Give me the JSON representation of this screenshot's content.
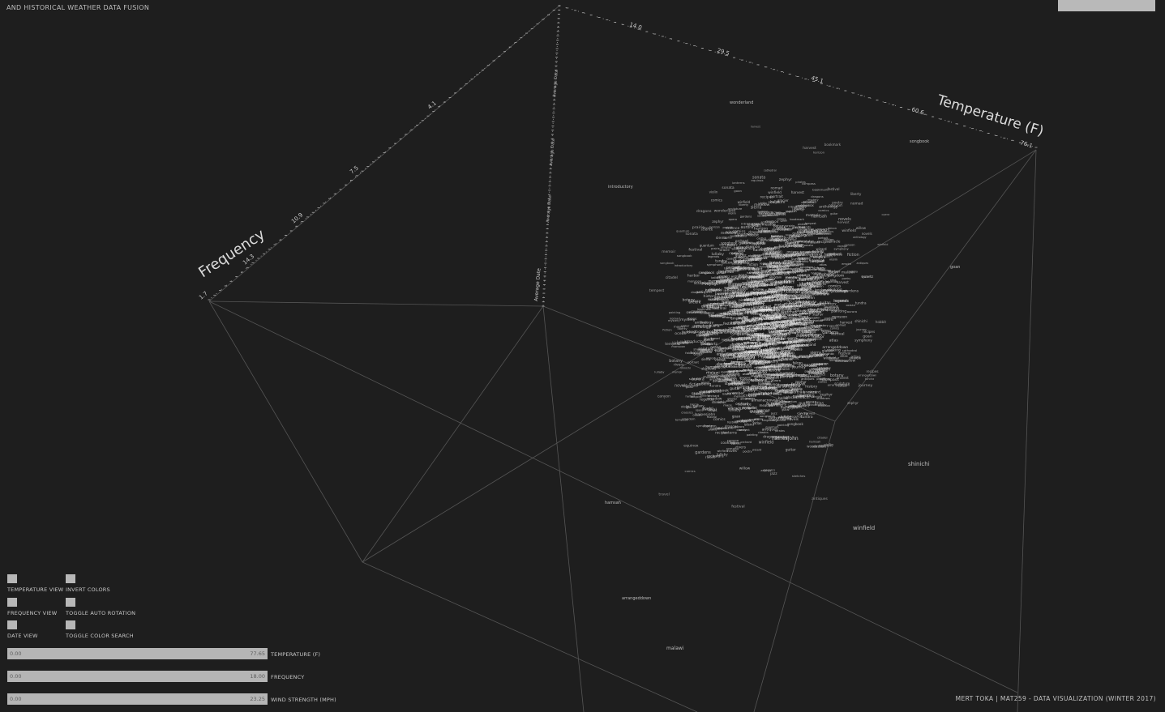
{
  "header": {
    "title": "AND HISTORICAL WEATHER DATA FUSION"
  },
  "footer": {
    "credits": "MERT TOKA  |  MAT259  -  DATA VISUALIZATION (WINTER 2017)"
  },
  "axes": {
    "temperature": {
      "label": "Temperature (F)",
      "ticks": [
        "14.0",
        "29.5",
        "45.1",
        "60.6",
        "76.1"
      ]
    },
    "frequency": {
      "label": "Frequency",
      "ticks": [
        "1.7",
        "14.3",
        "10.9",
        "7.5",
        "4.1"
      ]
    },
    "date": {
      "label": "Average Date",
      "ticks": [
        "Average Date",
        "Average Date",
        "Average Date",
        "Average Date"
      ]
    }
  },
  "words": [
    {
      "text": "shinichi",
      "size": 7
    },
    {
      "text": "winfield",
      "size": 7
    },
    {
      "text": "malawi",
      "size": 6
    },
    {
      "text": "hainesjohn",
      "size": 6
    },
    {
      "text": "hamsah",
      "size": 5
    },
    {
      "text": "arrangeddown",
      "size": 5
    },
    {
      "text": "goan",
      "size": 5
    },
    {
      "text": "introductory",
      "size": 5
    },
    {
      "text": "wonderland",
      "size": 5
    },
    {
      "text": "songbook",
      "size": 5
    },
    {
      "text": "cathedral",
      "size": 5
    },
    {
      "text": "galaxy",
      "size": 5
    },
    {
      "text": "bookmark",
      "size": 5
    },
    {
      "text": "ancient",
      "size": 5
    },
    {
      "text": "liberty",
      "size": 5
    },
    {
      "text": "hobbit",
      "size": 5
    },
    {
      "text": "guitar",
      "size": 5
    },
    {
      "text": "voyage",
      "size": 5
    },
    {
      "text": "antiques",
      "size": 5
    },
    {
      "text": "poetry",
      "size": 5
    },
    {
      "text": "harvest",
      "size": 5
    },
    {
      "text": "kingdom",
      "size": 5
    },
    {
      "text": "recipes",
      "size": 5
    },
    {
      "text": "ocean",
      "size": 5
    },
    {
      "text": "gardens",
      "size": 5
    },
    {
      "text": "wizard",
      "size": 5
    },
    {
      "text": "memoir",
      "size": 5
    },
    {
      "text": "island",
      "size": 5
    },
    {
      "text": "history",
      "size": 5
    },
    {
      "text": "jazz",
      "size": 5
    },
    {
      "text": "mystery",
      "size": 5
    },
    {
      "text": "cooking",
      "size": 5
    },
    {
      "text": "symphony",
      "size": 5
    },
    {
      "text": "atlas",
      "size": 5
    },
    {
      "text": "fiction",
      "size": 5
    },
    {
      "text": "journey",
      "size": 5
    },
    {
      "text": "science",
      "size": 5
    },
    {
      "text": "painting",
      "size": 5
    },
    {
      "text": "empire",
      "size": 5
    },
    {
      "text": "legends",
      "size": 5
    },
    {
      "text": "travel",
      "size": 5
    },
    {
      "text": "sonata",
      "size": 5
    },
    {
      "text": "portrait",
      "size": 5
    },
    {
      "text": "horizon",
      "size": 5
    },
    {
      "text": "dragons",
      "size": 5
    },
    {
      "text": "ballet",
      "size": 5
    },
    {
      "text": "quantum",
      "size": 5
    },
    {
      "text": "rivers",
      "size": 5
    },
    {
      "text": "sketches",
      "size": 5
    },
    {
      "text": "festival",
      "size": 5
    },
    {
      "text": "botany",
      "size": 5
    },
    {
      "text": "comics",
      "size": 5
    },
    {
      "text": "opera",
      "size": 5
    },
    {
      "text": "castles",
      "size": 5
    },
    {
      "text": "novels",
      "size": 5
    },
    {
      "text": "pirates",
      "size": 5
    },
    {
      "text": "maps",
      "size": 5
    },
    {
      "text": "classics",
      "size": 5
    },
    {
      "text": "shadows",
      "size": 5
    },
    {
      "text": "violin",
      "size": 5
    },
    {
      "text": "sculpture",
      "size": 5
    },
    {
      "text": "orchard",
      "size": 5
    },
    {
      "text": "lanterns",
      "size": 5
    },
    {
      "text": "tundra",
      "size": 5
    },
    {
      "text": "citadel",
      "size": 5
    },
    {
      "text": "meadow",
      "size": 5
    },
    {
      "text": "anthology",
      "size": 5
    },
    {
      "text": "lullaby",
      "size": 5
    },
    {
      "text": "monsoon",
      "size": 5
    },
    {
      "text": "prairie",
      "size": 5
    },
    {
      "text": "harbor",
      "size": 5
    },
    {
      "text": "glacier",
      "size": 5
    },
    {
      "text": "canyon",
      "size": 5
    },
    {
      "text": "aurora",
      "size": 5
    },
    {
      "text": "equinox",
      "size": 5
    },
    {
      "text": "almanac",
      "size": 5
    },
    {
      "text": "compass",
      "size": 5
    },
    {
      "text": "zephyr",
      "size": 5
    },
    {
      "text": "nomad",
      "size": 5
    },
    {
      "text": "oracle",
      "size": 5
    },
    {
      "text": "sierra",
      "size": 5
    },
    {
      "text": "tempest",
      "size": 5
    },
    {
      "text": "willow",
      "size": 5
    },
    {
      "text": "quartz",
      "size": 5
    },
    {
      "text": "falcon",
      "size": 5
    },
    {
      "text": "ember",
      "size": 5
    }
  ],
  "controls": {
    "toggles": [
      {
        "label": "TEMPERATURE VIEW"
      },
      {
        "label": "INVERT COLORS"
      },
      {
        "label": "FREQUENCY VIEW"
      },
      {
        "label": "TOGGLE AUTO ROTATION"
      },
      {
        "label": "DATE VIEW"
      },
      {
        "label": "TOGGLE COLOR SEARCH"
      }
    ],
    "sliders": [
      {
        "label": "TEMPERATURE (F)",
        "min": "0.00",
        "max": "77.65"
      },
      {
        "label": "FREQUENCY",
        "min": "0.00",
        "max": "18.00"
      },
      {
        "label": "WIND STRENGTH (MPH)",
        "min": "0.00",
        "max": "23.25"
      }
    ]
  },
  "colors": {
    "background": "#1e1e1e",
    "axis": "#8f8f8f",
    "text": "#d8d8d8",
    "control": "#b7b7b7"
  }
}
